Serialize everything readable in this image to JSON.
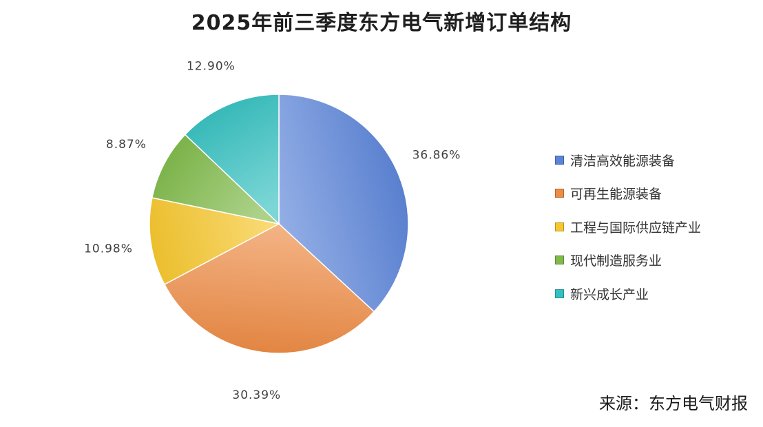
{
  "chart_data": {
    "type": "pie",
    "title": "2025年前三季度东方电气新增订单结构",
    "slices": [
      {
        "name": "清洁高效能源装备",
        "value": 36.86,
        "label": "36.86%",
        "color": "#5b84d9"
      },
      {
        "name": "可再生能源装备",
        "value": 30.39,
        "label": "30.39%",
        "color": "#ee8c45"
      },
      {
        "name": "工程与国际供应链产业",
        "value": 10.98,
        "label": "10.98%",
        "color": "#f7c82e"
      },
      {
        "name": "现代制造服务业",
        "value": 8.87,
        "label": "8.87%",
        "color": "#7fba4a"
      },
      {
        "name": "新兴成长产业",
        "value": 12.9,
        "label": "12.90%",
        "color": "#34c0c0"
      }
    ],
    "legend_position": "right"
  },
  "source": "来源：东方电气财报"
}
